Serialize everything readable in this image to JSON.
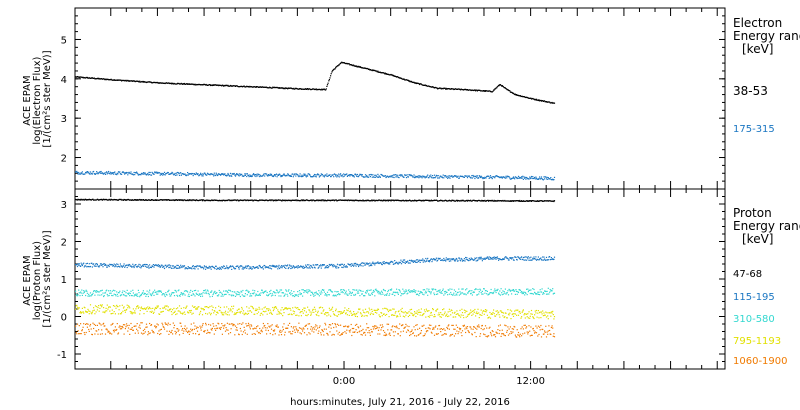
{
  "xlabel": "hours:minutes, July 21, 2016 - July 22, 2016",
  "x_ticks": [
    {
      "hour": 0,
      "label": "0:00"
    },
    {
      "hour": 12,
      "label": "12:00"
    }
  ],
  "chart_data": [
    {
      "type": "scatter",
      "panel": "electron",
      "ylabel_lines": [
        "ACE EPAM",
        "log(Electron Flux)",
        "[1/(cm²s ster MeV)]"
      ],
      "xlim": [
        -17.3,
        24.5
      ],
      "ylim": [
        1.2,
        5.8
      ],
      "y_ticks": [
        2,
        3,
        4,
        5
      ],
      "legend": {
        "title_lines": [
          "Electron",
          "Energy ranges",
          "[keV]"
        ],
        "placement": "right"
      },
      "series": [
        {
          "name": "38-53",
          "color": "#000000",
          "noise": 0.012,
          "x": [
            -17.3,
            -15.0,
            -12.0,
            -9.0,
            -6.0,
            -3.0,
            -1.2,
            -0.8,
            -0.2,
            1.0,
            3.0,
            4.5,
            6.0,
            8.0,
            9.5,
            10.0,
            10.4,
            11.0,
            12.0,
            13.5
          ],
          "y": [
            4.05,
            3.98,
            3.9,
            3.85,
            3.8,
            3.75,
            3.73,
            4.2,
            4.42,
            4.3,
            4.1,
            3.9,
            3.76,
            3.72,
            3.68,
            3.86,
            3.74,
            3.6,
            3.5,
            3.38
          ]
        },
        {
          "name": "175-315",
          "color": "#1a76c2",
          "noise": 0.04,
          "x": [
            -17.3,
            -10.0,
            -5.0,
            0.0,
            5.0,
            10.0,
            13.5
          ],
          "y": [
            1.62,
            1.58,
            1.55,
            1.55,
            1.52,
            1.5,
            1.47
          ]
        }
      ]
    },
    {
      "type": "scatter",
      "panel": "proton",
      "ylabel_lines": [
        "ACE EPAM",
        "log(Proton Flux)",
        "[1/(cm²s ster MeV)]"
      ],
      "xlim": [
        -17.3,
        24.5
      ],
      "ylim": [
        -1.4,
        3.4
      ],
      "y_ticks": [
        -1,
        0,
        1,
        2,
        3
      ],
      "legend": {
        "title_lines": [
          "Proton",
          "Energy ranges",
          "[keV]"
        ],
        "placement": "right"
      },
      "series": [
        {
          "name": "47-68",
          "color": "#000000",
          "noise": 0.012,
          "x": [
            -17.3,
            -8.0,
            0.0,
            8.0,
            13.5
          ],
          "y": [
            3.12,
            3.1,
            3.1,
            3.09,
            3.08
          ]
        },
        {
          "name": "115-195",
          "color": "#1a76c2",
          "noise": 0.05,
          "x": [
            -17.3,
            -8.0,
            0.0,
            5.0,
            10.0,
            13.5
          ],
          "y": [
            1.38,
            1.3,
            1.35,
            1.5,
            1.55,
            1.55
          ]
        },
        {
          "name": "310-580",
          "color": "#33d8d0",
          "noise": 0.09,
          "x": [
            -17.3,
            -5.0,
            5.0,
            13.5
          ],
          "y": [
            0.62,
            0.62,
            0.65,
            0.67
          ]
        },
        {
          "name": "795-1193",
          "color": "#e1e000",
          "noise": 0.12,
          "x": [
            -17.3,
            -5.0,
            5.0,
            13.5
          ],
          "y": [
            0.2,
            0.15,
            0.1,
            0.05
          ]
        },
        {
          "name": "1060-1900",
          "color": "#f07a00",
          "noise": 0.16,
          "x": [
            -17.3,
            -5.0,
            5.0,
            13.5
          ],
          "y": [
            -0.32,
            -0.33,
            -0.36,
            -0.4
          ]
        }
      ]
    }
  ]
}
